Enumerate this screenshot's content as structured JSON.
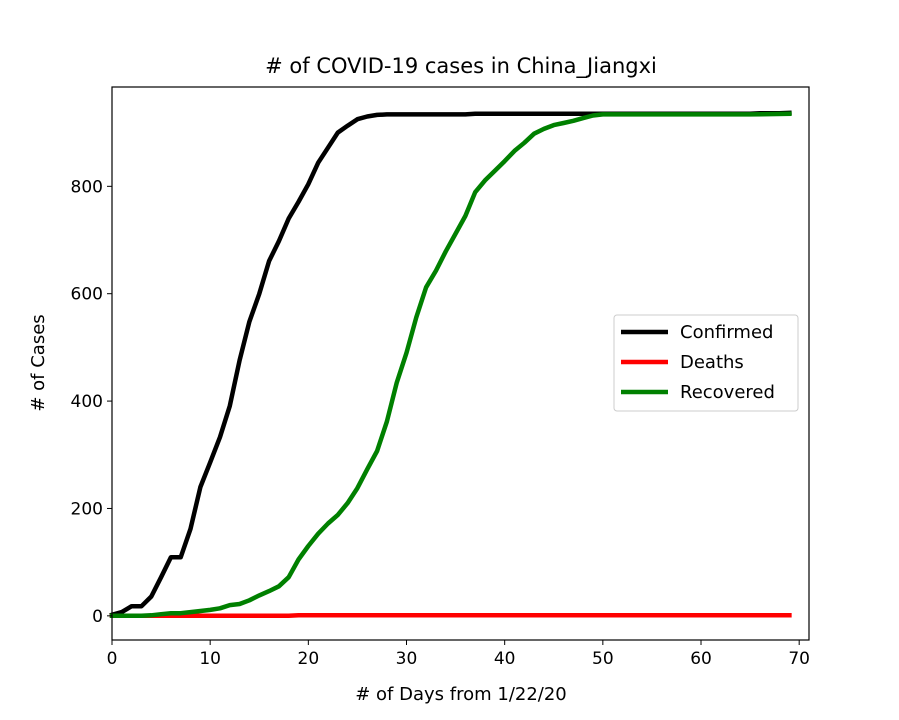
{
  "chart_data": {
    "type": "line",
    "title": "# of COVID-19 cases in China_Jiangxi",
    "xlabel": "# of Days from 1/22/20",
    "ylabel": "# of Cases",
    "xlim": [
      0,
      71
    ],
    "ylim": [
      -45,
      985
    ],
    "xticks": [
      0,
      10,
      20,
      30,
      40,
      50,
      60,
      70
    ],
    "yticks": [
      0,
      200,
      400,
      600,
      800
    ],
    "grid": false,
    "legend_position": "center-right",
    "series": [
      {
        "name": "Confirmed",
        "color": "#000000",
        "points": [
          [
            0,
            2
          ],
          [
            1,
            7
          ],
          [
            2,
            18
          ],
          [
            3,
            18
          ],
          [
            4,
            36
          ],
          [
            5,
            72
          ],
          [
            6,
            109
          ],
          [
            7,
            109
          ],
          [
            8,
            162
          ],
          [
            9,
            240
          ],
          [
            10,
            286
          ],
          [
            11,
            333
          ],
          [
            12,
            391
          ],
          [
            13,
            476
          ],
          [
            14,
            548
          ],
          [
            15,
            600
          ],
          [
            16,
            661
          ],
          [
            17,
            698
          ],
          [
            18,
            740
          ],
          [
            19,
            771
          ],
          [
            20,
            804
          ],
          [
            21,
            844
          ],
          [
            22,
            872
          ],
          [
            23,
            900
          ],
          [
            24,
            913
          ],
          [
            25,
            925
          ],
          [
            26,
            930
          ],
          [
            27,
            933
          ],
          [
            28,
            934
          ],
          [
            29,
            934
          ],
          [
            30,
            934
          ],
          [
            31,
            934
          ],
          [
            32,
            934
          ],
          [
            33,
            934
          ],
          [
            34,
            934
          ],
          [
            35,
            934
          ],
          [
            36,
            934
          ],
          [
            37,
            935
          ],
          [
            38,
            935
          ],
          [
            39,
            935
          ],
          [
            40,
            935
          ],
          [
            41,
            935
          ],
          [
            42,
            935
          ],
          [
            43,
            935
          ],
          [
            44,
            935
          ],
          [
            45,
            935
          ],
          [
            46,
            935
          ],
          [
            47,
            935
          ],
          [
            48,
            935
          ],
          [
            49,
            935
          ],
          [
            50,
            935
          ],
          [
            51,
            935
          ],
          [
            52,
            935
          ],
          [
            53,
            935
          ],
          [
            54,
            935
          ],
          [
            55,
            935
          ],
          [
            56,
            935
          ],
          [
            57,
            935
          ],
          [
            58,
            935
          ],
          [
            59,
            935
          ],
          [
            60,
            935
          ],
          [
            61,
            935
          ],
          [
            62,
            935
          ],
          [
            63,
            935
          ],
          [
            64,
            935
          ],
          [
            65,
            935
          ],
          [
            66,
            936
          ],
          [
            67,
            936
          ],
          [
            68,
            936
          ],
          [
            69,
            937
          ]
        ]
      },
      {
        "name": "Deaths",
        "color": "#ff0000",
        "points": [
          [
            0,
            0
          ],
          [
            1,
            0
          ],
          [
            2,
            0
          ],
          [
            3,
            0
          ],
          [
            4,
            0
          ],
          [
            5,
            0
          ],
          [
            6,
            0
          ],
          [
            7,
            0
          ],
          [
            8,
            0
          ],
          [
            9,
            0
          ],
          [
            10,
            0
          ],
          [
            11,
            0
          ],
          [
            12,
            0
          ],
          [
            13,
            0
          ],
          [
            14,
            0
          ],
          [
            15,
            0
          ],
          [
            16,
            0
          ],
          [
            17,
            0
          ],
          [
            18,
            0
          ],
          [
            19,
            1
          ],
          [
            20,
            1
          ],
          [
            25,
            1
          ],
          [
            30,
            1
          ],
          [
            40,
            1
          ],
          [
            50,
            1
          ],
          [
            60,
            1
          ],
          [
            69,
            1
          ]
        ]
      },
      {
        "name": "Recovered",
        "color": "#008000",
        "points": [
          [
            0,
            0
          ],
          [
            2,
            0
          ],
          [
            3,
            0
          ],
          [
            4,
            1
          ],
          [
            5,
            3
          ],
          [
            6,
            5
          ],
          [
            7,
            5
          ],
          [
            8,
            7
          ],
          [
            9,
            9
          ],
          [
            10,
            11
          ],
          [
            11,
            14
          ],
          [
            12,
            20
          ],
          [
            13,
            22
          ],
          [
            14,
            29
          ],
          [
            15,
            38
          ],
          [
            16,
            46
          ],
          [
            17,
            55
          ],
          [
            18,
            72
          ],
          [
            19,
            105
          ],
          [
            20,
            130
          ],
          [
            21,
            153
          ],
          [
            22,
            172
          ],
          [
            23,
            188
          ],
          [
            24,
            210
          ],
          [
            25,
            238
          ],
          [
            26,
            273
          ],
          [
            27,
            307
          ],
          [
            28,
            362
          ],
          [
            29,
            434
          ],
          [
            30,
            490
          ],
          [
            31,
            556
          ],
          [
            32,
            612
          ],
          [
            33,
            643
          ],
          [
            34,
            679
          ],
          [
            35,
            712
          ],
          [
            36,
            745
          ],
          [
            37,
            789
          ],
          [
            38,
            811
          ],
          [
            39,
            829
          ],
          [
            40,
            847
          ],
          [
            41,
            866
          ],
          [
            42,
            881
          ],
          [
            43,
            898
          ],
          [
            44,
            907
          ],
          [
            45,
            914
          ],
          [
            46,
            918
          ],
          [
            47,
            922
          ],
          [
            48,
            927
          ],
          [
            49,
            932
          ],
          [
            50,
            934
          ],
          [
            55,
            934
          ],
          [
            60,
            934
          ],
          [
            65,
            934
          ],
          [
            69,
            935
          ]
        ]
      }
    ]
  }
}
